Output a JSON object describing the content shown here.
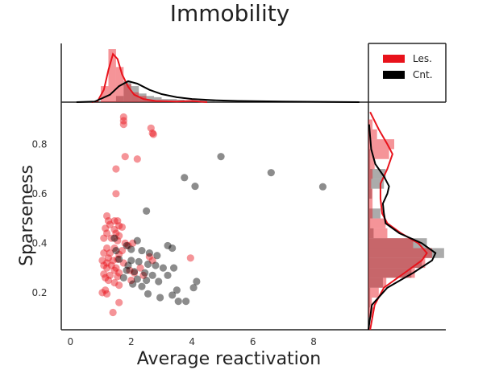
{
  "chart_data": {
    "type": "scatter",
    "title": "Immobility",
    "xlabel": "Average reactivation",
    "ylabel": "Sparseness",
    "xlim": [
      -0.3,
      9.8
    ],
    "ylim": [
      0.05,
      0.97
    ],
    "xticks": [
      0,
      2,
      4,
      6,
      8
    ],
    "yticks": [
      0.2,
      0.4,
      0.6,
      0.8
    ],
    "grid": false,
    "legend_position": "top-right (marginal corner)",
    "series": [
      {
        "name": "Les.",
        "color": "#e8121b",
        "points": [
          [
            1.75,
            0.91
          ],
          [
            1.75,
            0.895
          ],
          [
            1.75,
            0.88
          ],
          [
            2.65,
            0.865
          ],
          [
            2.7,
            0.845
          ],
          [
            2.73,
            0.84
          ],
          [
            1.8,
            0.75
          ],
          [
            2.2,
            0.74
          ],
          [
            1.5,
            0.7
          ],
          [
            1.5,
            0.6
          ],
          [
            1.2,
            0.51
          ],
          [
            1.25,
            0.49
          ],
          [
            1.45,
            0.49
          ],
          [
            1.55,
            0.49
          ],
          [
            1.3,
            0.475
          ],
          [
            1.6,
            0.47
          ],
          [
            1.7,
            0.465
          ],
          [
            1.15,
            0.46
          ],
          [
            1.45,
            0.455
          ],
          [
            1.2,
            0.44
          ],
          [
            1.5,
            0.44
          ],
          [
            1.6,
            0.43
          ],
          [
            1.1,
            0.42
          ],
          [
            1.35,
            0.42
          ],
          [
            1.55,
            0.41
          ],
          [
            1.8,
            0.4
          ],
          [
            1.9,
            0.39
          ],
          [
            2.05,
            0.4
          ],
          [
            1.2,
            0.38
          ],
          [
            1.45,
            0.38
          ],
          [
            1.7,
            0.37
          ],
          [
            1.1,
            0.36
          ],
          [
            1.3,
            0.36
          ],
          [
            1.6,
            0.355
          ],
          [
            1.25,
            0.34
          ],
          [
            1.4,
            0.33
          ],
          [
            1.55,
            0.335
          ],
          [
            1.05,
            0.33
          ],
          [
            1.2,
            0.32
          ],
          [
            1.75,
            0.32
          ],
          [
            1.1,
            0.31
          ],
          [
            1.35,
            0.31
          ],
          [
            1.5,
            0.3
          ],
          [
            1.2,
            0.3
          ],
          [
            1.45,
            0.29
          ],
          [
            1.6,
            0.28
          ],
          [
            1.1,
            0.275
          ],
          [
            1.3,
            0.27
          ],
          [
            1.55,
            0.265
          ],
          [
            1.95,
            0.29
          ],
          [
            2.1,
            0.28
          ],
          [
            2.3,
            0.3
          ],
          [
            2.4,
            0.27
          ],
          [
            2.6,
            0.345
          ],
          [
            2.7,
            0.33
          ],
          [
            3.95,
            0.34
          ],
          [
            1.25,
            0.25
          ],
          [
            1.45,
            0.24
          ],
          [
            1.6,
            0.23
          ],
          [
            1.15,
            0.21
          ],
          [
            1.05,
            0.2
          ],
          [
            1.2,
            0.195
          ],
          [
            1.6,
            0.16
          ],
          [
            1.4,
            0.12
          ],
          [
            1.15,
            0.26
          ],
          [
            2.0,
            0.25
          ]
        ]
      },
      {
        "name": "Cnt.",
        "color": "#000000",
        "points": [
          [
            4.95,
            0.75
          ],
          [
            6.6,
            0.685
          ],
          [
            3.75,
            0.665
          ],
          [
            4.1,
            0.63
          ],
          [
            8.3,
            0.628
          ],
          [
            2.5,
            0.53
          ],
          [
            1.45,
            0.42
          ],
          [
            1.85,
            0.39
          ],
          [
            2.2,
            0.41
          ],
          [
            3.2,
            0.39
          ],
          [
            3.35,
            0.38
          ],
          [
            2.0,
            0.375
          ],
          [
            2.35,
            0.37
          ],
          [
            2.6,
            0.36
          ],
          [
            2.85,
            0.35
          ],
          [
            1.6,
            0.335
          ],
          [
            2.0,
            0.33
          ],
          [
            2.25,
            0.325
          ],
          [
            2.55,
            0.315
          ],
          [
            2.8,
            0.31
          ],
          [
            3.05,
            0.3
          ],
          [
            3.4,
            0.3
          ],
          [
            1.85,
            0.29
          ],
          [
            2.1,
            0.285
          ],
          [
            2.45,
            0.28
          ],
          [
            2.7,
            0.27
          ],
          [
            3.2,
            0.27
          ],
          [
            1.75,
            0.26
          ],
          [
            2.2,
            0.255
          ],
          [
            2.5,
            0.25
          ],
          [
            2.9,
            0.245
          ],
          [
            4.15,
            0.245
          ],
          [
            2.05,
            0.235
          ],
          [
            2.35,
            0.225
          ],
          [
            4.05,
            0.22
          ],
          [
            3.5,
            0.21
          ],
          [
            2.55,
            0.195
          ],
          [
            3.35,
            0.19
          ],
          [
            2.95,
            0.18
          ],
          [
            3.55,
            0.165
          ],
          [
            3.8,
            0.165
          ],
          [
            1.9,
            0.31
          ],
          [
            1.5,
            0.37
          ]
        ]
      }
    ],
    "marginal_x_histogram": {
      "bin_edges": [
        1.0,
        1.25,
        1.5,
        1.75,
        2.0,
        2.25,
        2.5,
        2.75,
        3.0,
        3.25,
        3.5,
        3.75,
        4.0,
        4.25,
        4.5,
        4.75,
        5.0
      ],
      "Les.": [
        0.26,
        0.86,
        0.57,
        0.29,
        0.16,
        0.1,
        0.03,
        0.01,
        0,
        0,
        0,
        0,
        0.02,
        0,
        0,
        0,
        0
      ],
      "Cnt.": [
        0,
        0,
        0.1,
        0.34,
        0.26,
        0.14,
        0.1,
        0.08,
        0.05,
        0.05,
        0.04,
        0.03,
        0.02,
        0.03,
        0.02,
        0.01,
        0.01
      ],
      "Les._kde": [
        [
          0.7,
          0
        ],
        [
          0.9,
          0.02
        ],
        [
          1.1,
          0.2
        ],
        [
          1.25,
          0.52
        ],
        [
          1.4,
          0.78
        ],
        [
          1.55,
          0.7
        ],
        [
          1.7,
          0.45
        ],
        [
          1.9,
          0.25
        ],
        [
          2.1,
          0.12
        ],
        [
          2.4,
          0.05
        ],
        [
          2.8,
          0.02
        ],
        [
          3.5,
          0.01
        ],
        [
          4.0,
          0.02
        ],
        [
          4.5,
          0.0
        ]
      ],
      "Cnt._kde": [
        [
          0.2,
          0
        ],
        [
          0.8,
          0.01
        ],
        [
          1.3,
          0.12
        ],
        [
          1.6,
          0.26
        ],
        [
          1.9,
          0.34
        ],
        [
          2.2,
          0.3
        ],
        [
          2.6,
          0.2
        ],
        [
          3.0,
          0.13
        ],
        [
          3.5,
          0.08
        ],
        [
          4.0,
          0.05
        ],
        [
          4.8,
          0.03
        ],
        [
          5.5,
          0.02
        ],
        [
          7.0,
          0.01
        ],
        [
          9.5,
          0
        ]
      ]
    },
    "marginal_y_histogram": {
      "bin_edges": [
        0.1,
        0.14,
        0.18,
        0.22,
        0.26,
        0.3,
        0.34,
        0.38,
        0.42,
        0.46,
        0.5,
        0.54,
        0.58,
        0.62,
        0.66,
        0.7,
        0.74,
        0.78,
        0.82,
        0.86,
        0.9
      ],
      "Les.": [
        0.14,
        0.1,
        0.3,
        0.52,
        1.35,
        1.65,
        1.85,
        1.3,
        0.55,
        0.5,
        0.12,
        0.12,
        0.12,
        0.08,
        0.12,
        0.18,
        0.6,
        0.75,
        0.25,
        0.12
      ],
      "Cnt.": [
        0,
        0.05,
        0.05,
        0.42,
        1.25,
        1.55,
        2.2,
        1.7,
        0.15,
        0.05,
        0.35,
        0,
        0.1,
        0.45,
        0.5,
        0.05,
        0.05,
        0,
        0,
        0
      ],
      "Les._kde": [
        [
          0.05,
          0.05
        ],
        [
          0.15,
          0.18
        ],
        [
          0.22,
          0.45
        ],
        [
          0.28,
          1.05
        ],
        [
          0.33,
          1.55
        ],
        [
          0.36,
          1.7
        ],
        [
          0.4,
          1.45
        ],
        [
          0.44,
          0.95
        ],
        [
          0.48,
          0.55
        ],
        [
          0.52,
          0.4
        ],
        [
          0.58,
          0.35
        ],
        [
          0.64,
          0.35
        ],
        [
          0.7,
          0.55
        ],
        [
          0.76,
          0.7
        ],
        [
          0.8,
          0.55
        ],
        [
          0.86,
          0.3
        ],
        [
          0.93,
          0.05
        ]
      ],
      "Cnt._kde": [
        [
          0.05,
          0
        ],
        [
          0.15,
          0.1
        ],
        [
          0.22,
          0.55
        ],
        [
          0.28,
          1.3
        ],
        [
          0.33,
          1.85
        ],
        [
          0.36,
          1.95
        ],
        [
          0.4,
          1.55
        ],
        [
          0.44,
          0.9
        ],
        [
          0.48,
          0.5
        ],
        [
          0.52,
          0.45
        ],
        [
          0.56,
          0.42
        ],
        [
          0.6,
          0.55
        ],
        [
          0.63,
          0.6
        ],
        [
          0.67,
          0.45
        ],
        [
          0.72,
          0.2
        ],
        [
          0.78,
          0.08
        ],
        [
          0.88,
          0.02
        ]
      ]
    }
  }
}
